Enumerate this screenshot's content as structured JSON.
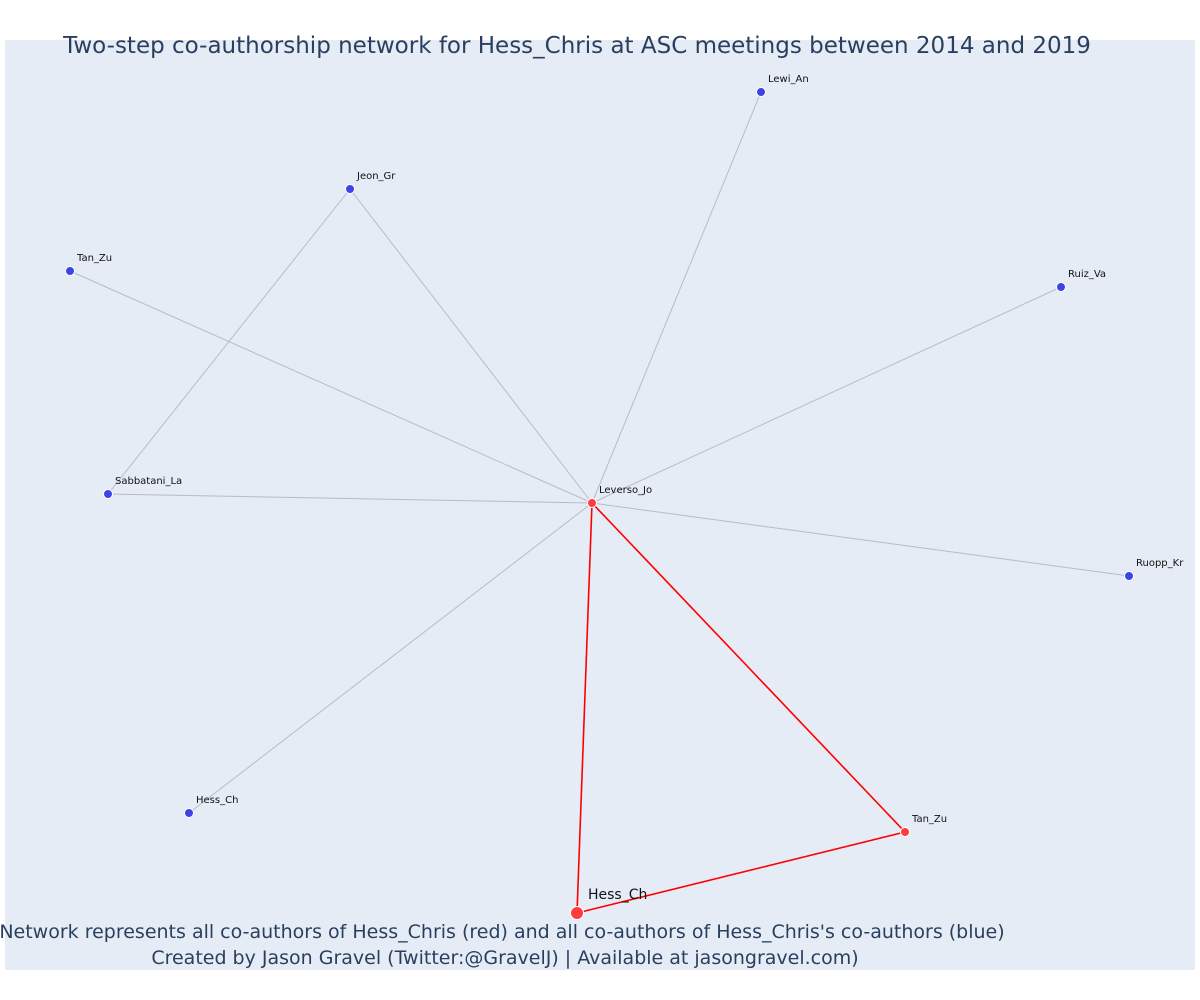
{
  "title": "Two-step co-authorship network for Hess_Chris at ASC meetings between 2014 and 2019",
  "caption": {
    "line1": "Network represents all co-authors of Hess_Chris (red) and all co-authors of Hess_Chris's co-authors (blue)",
    "line2": "Created by Jason Gravel (Twitter:@GravelJ) | Available at jasongravel.com)"
  },
  "colors": {
    "plot_background": "#e5ecf6",
    "first_step_node": "#ff3b3b",
    "second_step_node": "#3d44e6",
    "first_step_edge": "#ff0000",
    "second_step_edge": "#b7bcc8",
    "text": "#2a3f5f"
  },
  "nodes": [
    {
      "id": "ego",
      "label": "Hess_Ch",
      "group": "ego"
    },
    {
      "id": "leverso",
      "label": "Leverso_Jo",
      "group": "first"
    },
    {
      "id": "tan_red",
      "label": "Tan_Zu",
      "group": "first"
    },
    {
      "id": "lewi",
      "label": "Lewi_An",
      "group": "second"
    },
    {
      "id": "jeon",
      "label": "Jeon_Gr",
      "group": "second"
    },
    {
      "id": "tan_blue",
      "label": "Tan_Zu",
      "group": "second"
    },
    {
      "id": "ruiz",
      "label": "Ruiz_Va",
      "group": "second"
    },
    {
      "id": "sabbatani",
      "label": "Sabbatani_La",
      "group": "second"
    },
    {
      "id": "ruopp",
      "label": "Ruopp_Kr",
      "group": "second"
    },
    {
      "id": "hess_blue",
      "label": "Hess_Ch",
      "group": "second"
    }
  ],
  "edges": [
    {
      "source": "ego",
      "target": "leverso",
      "type": "first"
    },
    {
      "source": "ego",
      "target": "tan_red",
      "type": "first"
    },
    {
      "source": "leverso",
      "target": "tan_red",
      "type": "first"
    },
    {
      "source": "leverso",
      "target": "lewi",
      "type": "second"
    },
    {
      "source": "leverso",
      "target": "jeon",
      "type": "second"
    },
    {
      "source": "leverso",
      "target": "tan_blue",
      "type": "second"
    },
    {
      "source": "leverso",
      "target": "ruiz",
      "type": "second"
    },
    {
      "source": "leverso",
      "target": "sabbatani",
      "type": "second"
    },
    {
      "source": "leverso",
      "target": "ruopp",
      "type": "second"
    },
    {
      "source": "leverso",
      "target": "hess_blue",
      "type": "second"
    },
    {
      "source": "jeon",
      "target": "sabbatani",
      "type": "second"
    }
  ]
}
